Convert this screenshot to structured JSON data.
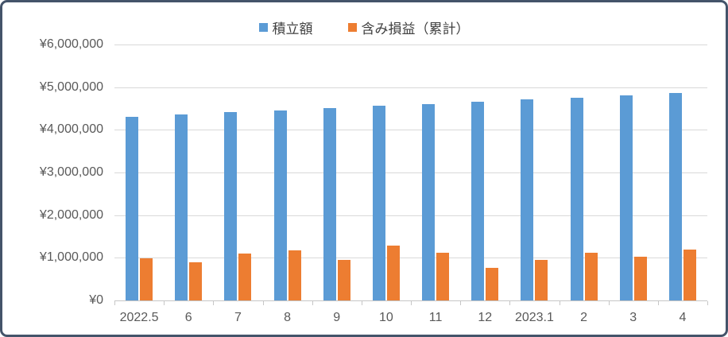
{
  "chart_data": {
    "type": "bar",
    "title": "",
    "categories": [
      "2022.5",
      "6",
      "7",
      "8",
      "9",
      "10",
      "11",
      "12",
      "2023.1",
      "2",
      "3",
      "4"
    ],
    "series": [
      {
        "name": "積立額",
        "color": "#5B9BD5",
        "values": [
          4310000,
          4360000,
          4410000,
          4460000,
          4510000,
          4560000,
          4610000,
          4660000,
          4710000,
          4760000,
          4810000,
          4860000
        ]
      },
      {
        "name": "含み損益（累計）",
        "color": "#ED7D31",
        "values": [
          980000,
          900000,
          1100000,
          1180000,
          950000,
          1280000,
          1120000,
          770000,
          950000,
          1110000,
          1030000,
          1200000
        ]
      }
    ],
    "xlabel": "",
    "ylabel": "",
    "ylim": [
      0,
      6000000
    ],
    "y_tick_interval": 1000000,
    "y_tick_labels": [
      "¥0",
      "¥1,000,000",
      "¥2,000,000",
      "¥3,000,000",
      "¥4,000,000",
      "¥5,000,000",
      "¥6,000,000"
    ],
    "legend_position": "top",
    "grid": "horizontal"
  },
  "colors": {
    "bar_blue": "#5B9BD5",
    "bar_orange": "#ED7D31",
    "gridline": "#D9D9D9",
    "axis_line": "#C6C6C6",
    "axis_text": "#595959",
    "legend_text": "#404040",
    "border": "#44546A",
    "background": "#FFFFFF"
  }
}
